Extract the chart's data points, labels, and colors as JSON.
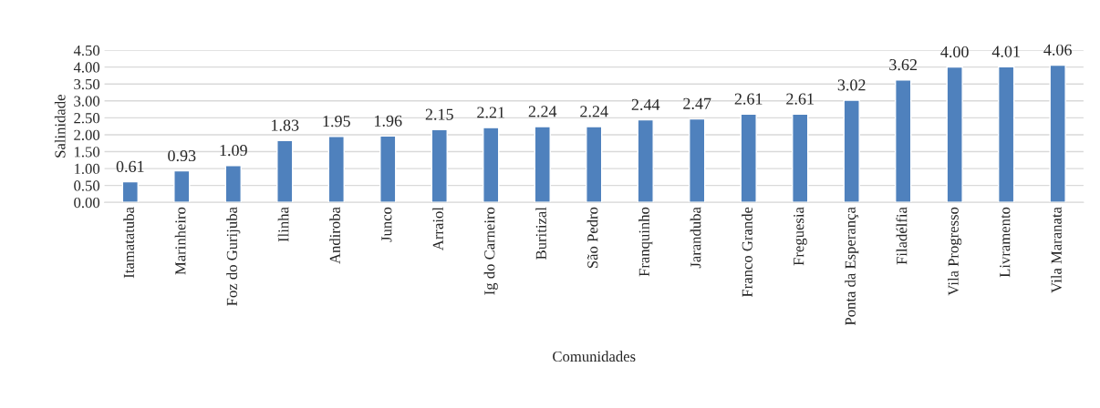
{
  "chart_data": {
    "type": "bar",
    "xlabel": "Comunidades",
    "ylabel": "Salinidade",
    "categories": [
      "Itamatatuba",
      "Marinheiro",
      "Foz do Gurijuba",
      "Ilinha",
      "Andiroba",
      "Junco",
      "Arraiol",
      "Ig do Carneiro",
      "Buritizal",
      "São Pedro",
      "Franquinho",
      "Jaranduba",
      "Franco Grande",
      "Freguesia",
      "Ponta da Esperança",
      "Filadélfia",
      "Vila Progresso",
      "Livramento",
      "Vila Maranata"
    ],
    "values": [
      0.61,
      0.93,
      1.09,
      1.83,
      1.95,
      1.96,
      2.15,
      2.21,
      2.24,
      2.24,
      2.44,
      2.47,
      2.61,
      2.61,
      3.02,
      3.62,
      4.0,
      4.01,
      4.06
    ],
    "value_labels": [
      "0.61",
      "0.93",
      "1.09",
      "1.83",
      "1.95",
      "1.96",
      "2.15",
      "2.21",
      "2.24",
      "2.24",
      "2.44",
      "2.47",
      "2.61",
      "2.61",
      "3.02",
      "3.62",
      "4.00",
      "4.01",
      "4.06"
    ],
    "color": "#4f81bd",
    "ylim": [
      0,
      4.5
    ],
    "yticks": [
      {
        "value": 0,
        "label": "0.00"
      },
      {
        "value": 0.5,
        "label": "0.50"
      },
      {
        "value": 1,
        "label": "1.00"
      },
      {
        "value": 1.5,
        "label": "1.50"
      },
      {
        "value": 2,
        "label": "2.00"
      },
      {
        "value": 2.5,
        "label": "2.50"
      },
      {
        "value": 3,
        "label": "3.00"
      },
      {
        "value": 3.5,
        "label": "3.50"
      },
      {
        "value": 4,
        "label": "4.00"
      },
      {
        "value": 4.5,
        "label": "4.50"
      }
    ],
    "grid": "y",
    "legend": false
  }
}
